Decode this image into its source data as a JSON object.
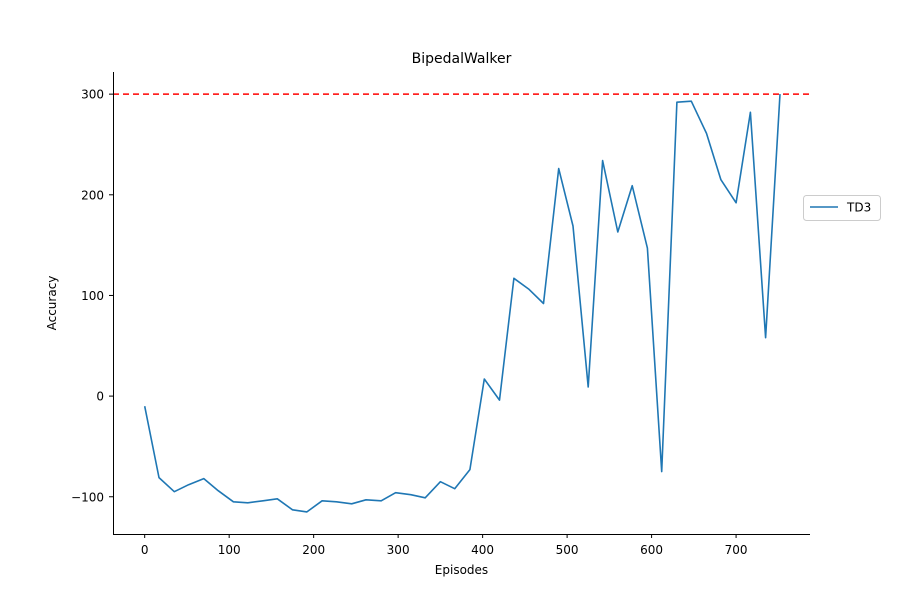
{
  "chart_data": {
    "type": "line",
    "title": "BipedalWalker",
    "xlabel": "Episodes",
    "ylabel": "Accuracy",
    "xlim": [
      -37.5,
      787.5
    ],
    "ylim": [
      -137,
      322
    ],
    "xticks": [
      0,
      100,
      200,
      300,
      400,
      500,
      600,
      700
    ],
    "yticks": [
      -100,
      0,
      100,
      200,
      300
    ],
    "grid": false,
    "legend_position": "center-right",
    "reference_line": {
      "y": 300,
      "color": "#ff0000",
      "style": "dashed"
    },
    "series": [
      {
        "name": "TD3",
        "color": "#1f77b4",
        "x": [
          0,
          17,
          35,
          52,
          70,
          87,
          105,
          122,
          140,
          157,
          175,
          192,
          210,
          227,
          245,
          262,
          280,
          297,
          315,
          332,
          350,
          367,
          385,
          402,
          420,
          437,
          455,
          472,
          490,
          507,
          525,
          542,
          560,
          577,
          595,
          612,
          630,
          647,
          665,
          682,
          700,
          717,
          735,
          752
        ],
        "values": [
          -10,
          -81,
          -95,
          -88,
          -82,
          -94,
          -105,
          -106,
          -104,
          -102,
          -113,
          -115,
          -104,
          -105,
          -107,
          -103,
          -104,
          -96,
          -98,
          -101,
          -85,
          -92,
          -73,
          17,
          -4,
          117,
          106,
          92,
          226,
          169,
          9,
          234,
          163,
          209,
          147,
          -75,
          292,
          293,
          261,
          215,
          192,
          282,
          58,
          300
        ]
      }
    ]
  }
}
